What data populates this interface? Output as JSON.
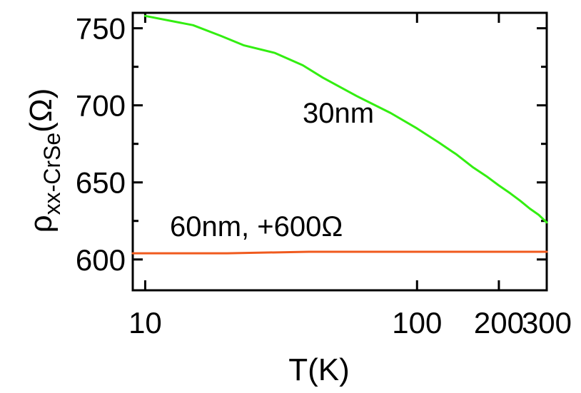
{
  "chart_data": {
    "type": "line",
    "title": "",
    "xlabel": "T(K)",
    "ylabel": {
      "symbol": "ρ",
      "subscript": "xx-CrSe",
      "unit": "(Ω)"
    },
    "x_scale": "log",
    "xlim": [
      9,
      300
    ],
    "ylim": [
      580,
      760
    ],
    "x_ticks": [
      {
        "value": 10,
        "label": "10"
      },
      {
        "value": 100,
        "label": "100"
      },
      {
        "value": 200,
        "label": "200"
      },
      {
        "value": 300,
        "label": "300"
      }
    ],
    "y_ticks": [
      {
        "value": 600,
        "label": "600"
      },
      {
        "value": 650,
        "label": "650"
      },
      {
        "value": 700,
        "label": "700"
      },
      {
        "value": 750,
        "label": "750"
      }
    ],
    "y_minor_ticks": [
      625,
      675,
      725
    ],
    "grid": false,
    "legend": "none",
    "series": [
      {
        "label": "30nm",
        "color": "#33ee11",
        "x": [
          10,
          15,
          19,
          23,
          30,
          38,
          45,
          60,
          80,
          100,
          120,
          140,
          160,
          180,
          200,
          220,
          240,
          260,
          280,
          300
        ],
        "y": [
          758,
          752,
          745,
          739,
          734,
          726,
          718,
          706,
          695,
          685,
          676,
          668,
          660,
          654,
          648,
          643,
          638,
          633,
          629,
          624
        ]
      },
      {
        "label": "60nm, +600Ω",
        "color": "#f05a1e",
        "x": [
          9,
          20,
          40,
          60,
          100,
          150,
          200,
          250,
          300
        ],
        "y": [
          604,
          604,
          605,
          605,
          605,
          605,
          605,
          605,
          605
        ]
      }
    ]
  }
}
